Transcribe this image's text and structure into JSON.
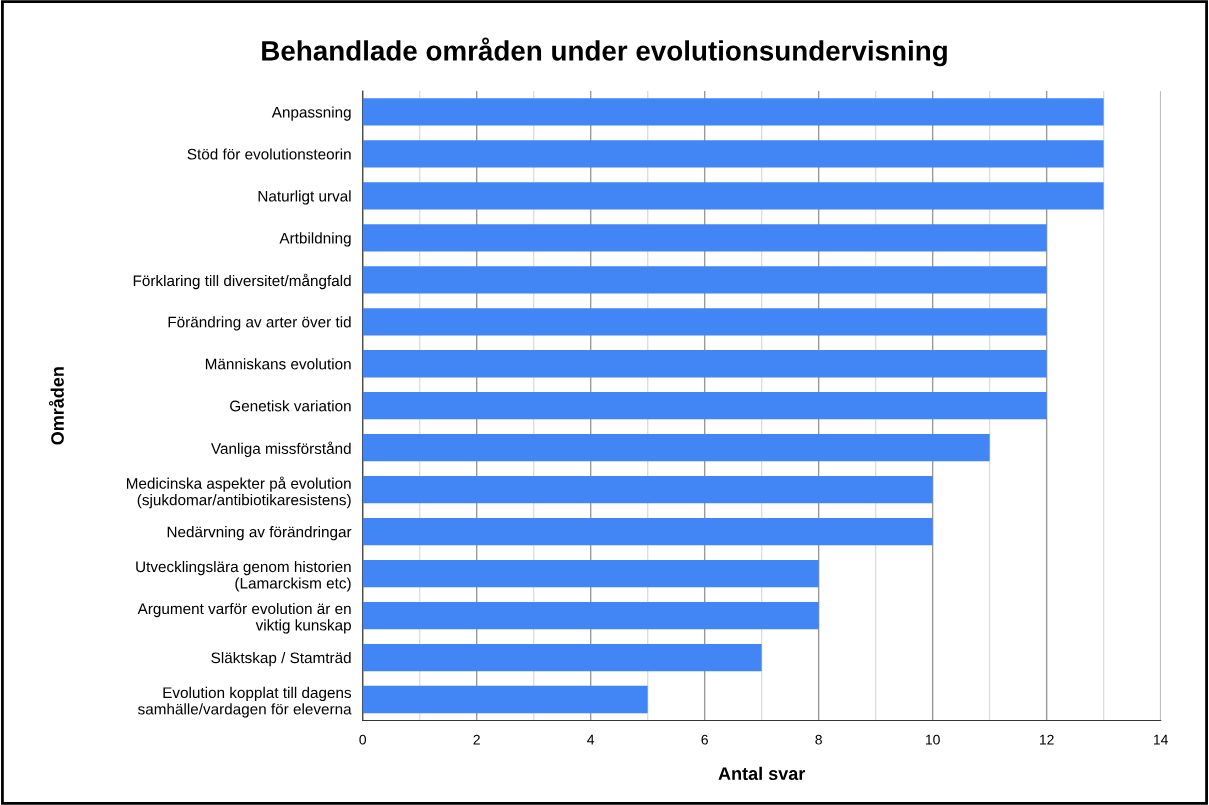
{
  "chart_data": {
    "type": "bar",
    "orientation": "horizontal",
    "title": "Behandlade områden under evolutionsundervisning",
    "xlabel": "Antal svar",
    "ylabel": "Områden",
    "categories": [
      "Anpassning",
      "Stöd för evolutionsteorin",
      "Naturligt urval",
      "Artbildning",
      "Förklaring till diversitet/mångfald",
      "Förändring av arter över tid",
      "Människans evolution",
      "Genetisk variation",
      "Vanliga missförstånd",
      "Medicinska aspekter på evolution\n(sjukdomar/antibiotikaresistens)",
      "Nedärvning av förändringar",
      "Utvecklingslära genom historien\n(Lamarckism etc)",
      "Argument varför evolution är en\nviktig kunskap",
      "Släktskap / Stamträd",
      "Evolution kopplat till dagens\nsamhälle/vardagen för eleverna"
    ],
    "values": [
      13,
      13,
      13,
      12,
      12,
      12,
      12,
      12,
      11,
      10,
      10,
      8,
      8,
      7,
      5
    ],
    "color": "#4285f4",
    "xlim": [
      0,
      14
    ],
    "xticks": [
      0,
      {
        "value": 1,
        "label": null
      },
      2,
      {
        "value": 3,
        "label": null
      },
      4,
      {
        "value": 5,
        "label": null
      },
      6,
      {
        "value": 7,
        "label": null
      },
      8,
      {
        "value": 9,
        "label": null
      },
      10,
      {
        "value": 11,
        "label": null
      },
      12,
      {
        "value": 13,
        "label": null
      },
      14
    ],
    "grid": "x",
    "legend": false
  }
}
